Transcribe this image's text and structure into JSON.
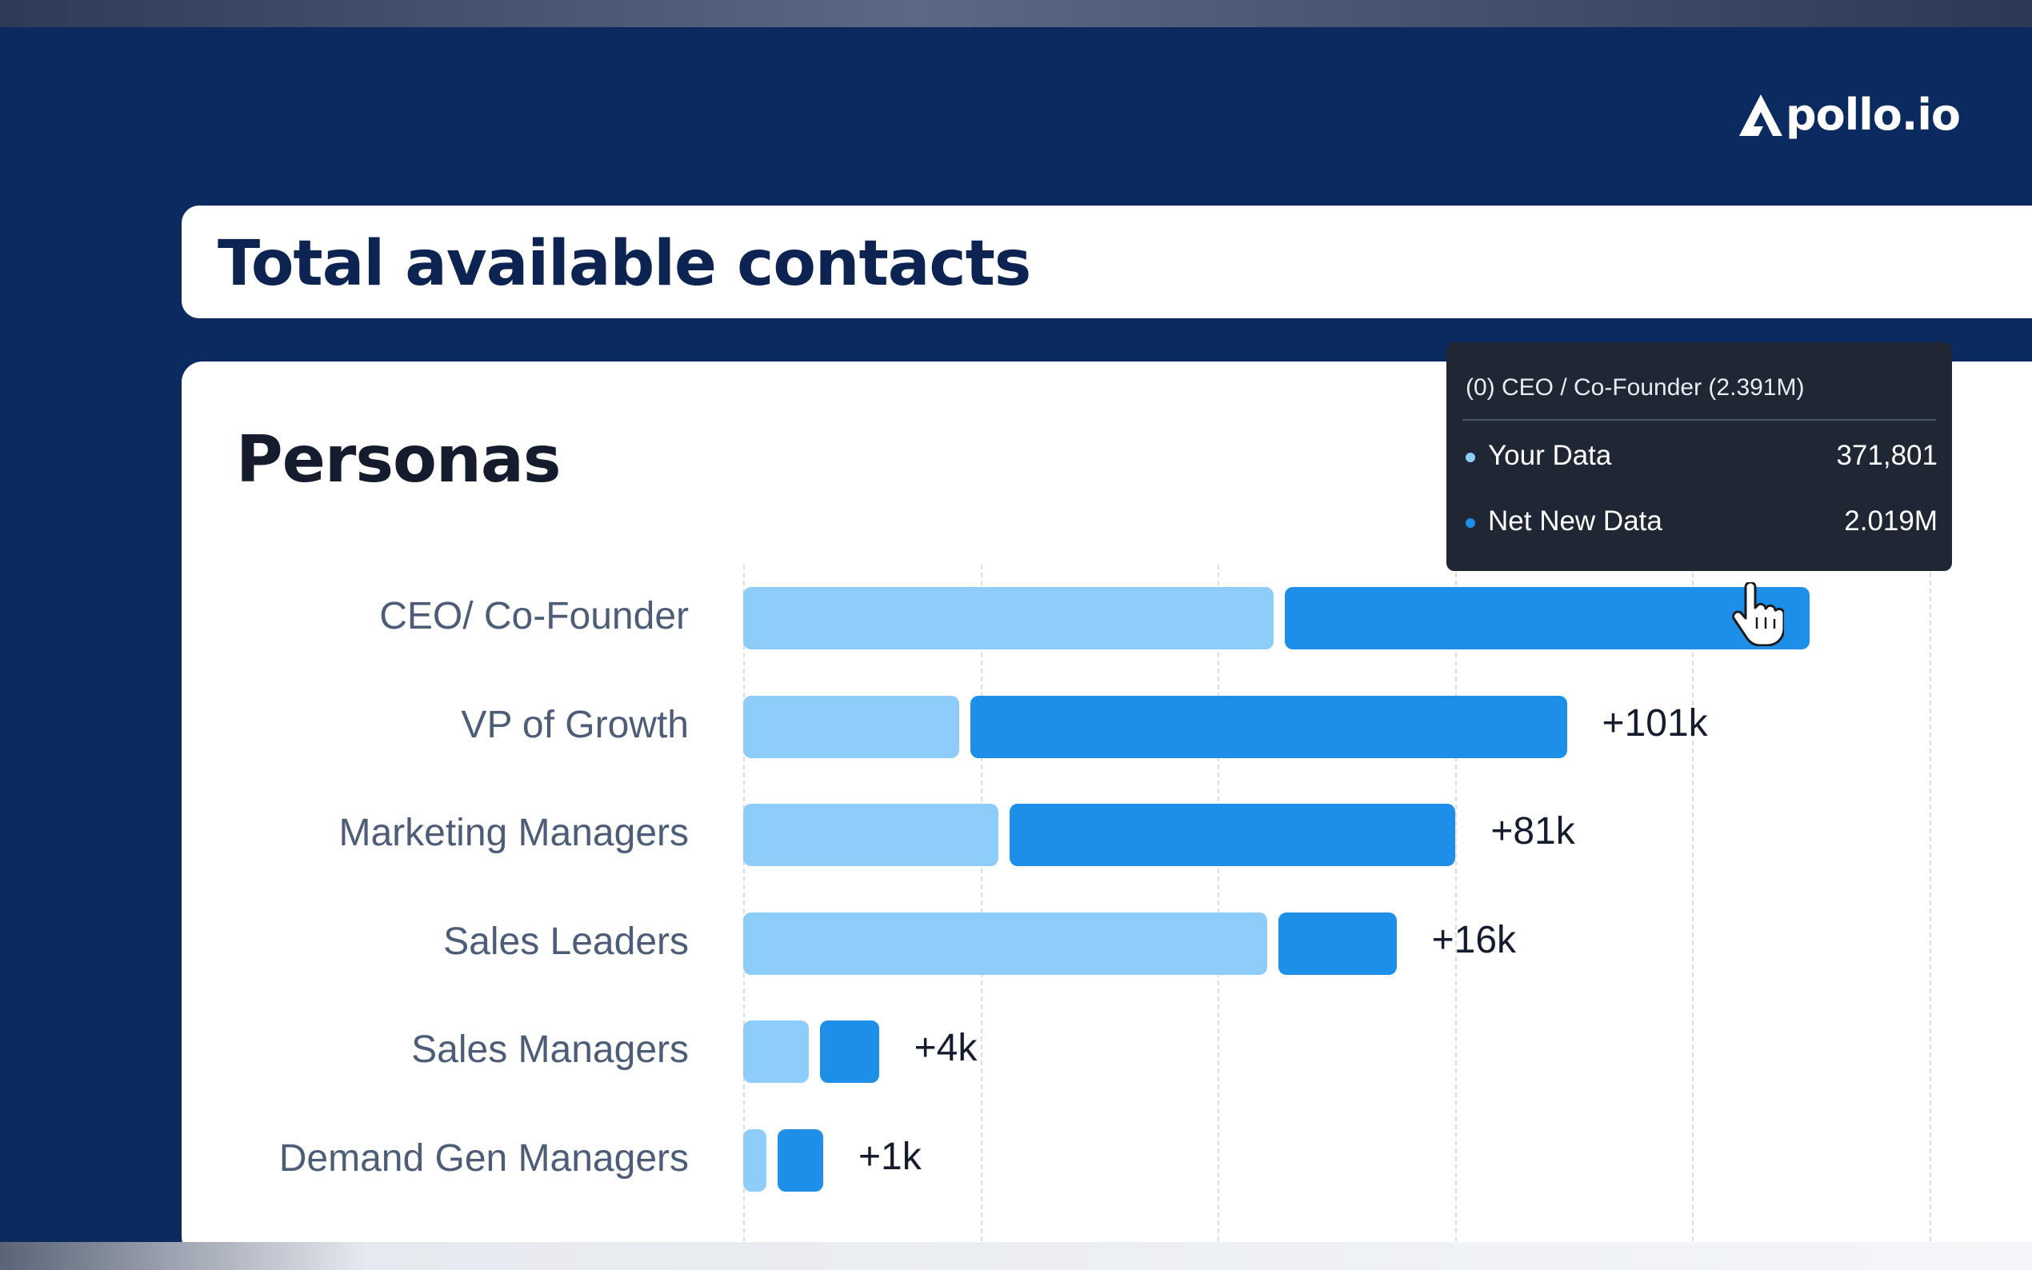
{
  "brand": {
    "logo_text": "pollo.io",
    "logo_full": "Apollo.io"
  },
  "header": {
    "title": "Total available contacts"
  },
  "colors": {
    "background": "#0a2a60",
    "your_data": "#8ecdf9",
    "net_new_data": "#1e8fe8",
    "tooltip_bg": "#1f2735"
  },
  "tooltip": {
    "title": "(0) CEO / Co-Founder (2.391M)",
    "rows": [
      {
        "label": "Your Data",
        "value": "371,801",
        "color": "#8ecdf9"
      },
      {
        "label": "Net New Data",
        "value": "2.019M",
        "color": "#1e8fe8"
      }
    ]
  },
  "chart_data": {
    "type": "bar",
    "orientation": "horizontal",
    "stacked": true,
    "title": "Personas",
    "categories": [
      "CEO/ Co-Founder",
      "VP of Growth",
      "Marketing Managers",
      "Sales Leaders",
      "Sales Managers",
      "Demand Gen Managers"
    ],
    "series": [
      {
        "name": "Your Data",
        "values": [
          8.1,
          3.3,
          3.9,
          8.0,
          1.0,
          0.35
        ]
      },
      {
        "name": "Net New Data",
        "values": [
          8.0,
          9.1,
          6.8,
          1.8,
          0.9,
          0.7
        ]
      }
    ],
    "delta_labels": [
      "",
      "+101k",
      "+81k",
      "+16k",
      "+4k",
      "+1k"
    ],
    "gridlines": true,
    "xlim": [
      0,
      20
    ]
  }
}
